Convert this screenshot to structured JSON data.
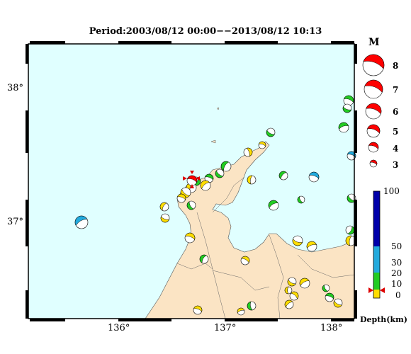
{
  "title": "Period:2003/08/12 00:00−−2013/08/12 10:13",
  "axes": {
    "lon_ticks": [
      "136°",
      "137°",
      "138°"
    ],
    "lat_ticks": [
      "38°",
      "37°"
    ]
  },
  "magnitude_legend": {
    "heading": "M",
    "levels": [
      "8",
      "7",
      "6",
      "5",
      "4",
      "3"
    ]
  },
  "depth_legend": {
    "ticks": [
      "100",
      "50",
      "30",
      "20",
      "10",
      "0"
    ],
    "label": "Depth(km)",
    "colors": {
      "shallow": "#ffdd00",
      "mid": "#22cc22",
      "deep": "#22aadd",
      "deepest": "#0000aa"
    }
  },
  "colors": {
    "sea": "#e0ffff",
    "land": "#fbe4c4",
    "main_event": "#ff0000",
    "frame": "#000000"
  },
  "events_depth_classes": [
    "shallow",
    "mid",
    "deep"
  ]
}
